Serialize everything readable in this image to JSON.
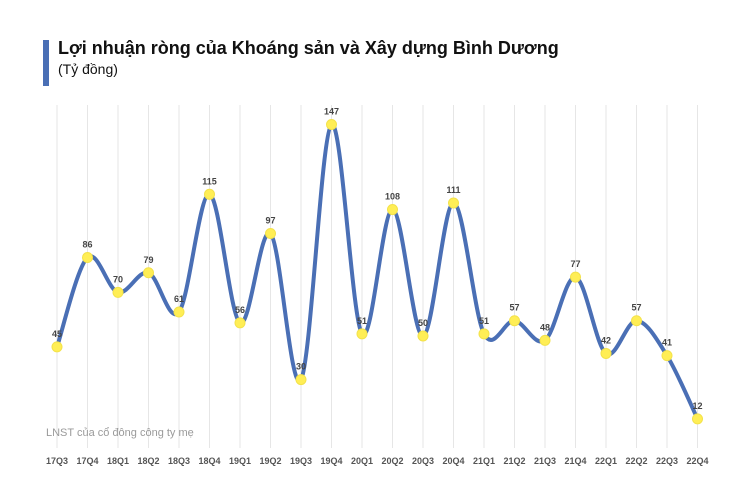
{
  "chart_data": {
    "type": "line",
    "title": "Lợi nhuận ròng của Khoáng sản và Xây dựng Bình Dương",
    "subtitle": "(Tỷ đồng)",
    "note": "LNST của cổ đông công ty mẹ",
    "categories": [
      "17Q3",
      "17Q4",
      "18Q1",
      "18Q2",
      "18Q3",
      "18Q4",
      "19Q1",
      "19Q2",
      "19Q3",
      "19Q4",
      "20Q1",
      "20Q2",
      "20Q3",
      "20Q4",
      "21Q1",
      "21Q2",
      "21Q3",
      "21Q4",
      "22Q1",
      "22Q2",
      "22Q3",
      "22Q4"
    ],
    "series": [
      {
        "values": [
          45,
          86,
          70,
          79,
          61,
          115,
          56,
          97,
          30,
          147,
          51,
          108,
          50,
          111,
          51,
          57,
          48,
          77,
          42,
          57,
          41,
          12
        ]
      }
    ],
    "ylim": [
      0,
      150
    ],
    "grid": "vertical",
    "colors": {
      "line": "#4a6fb5",
      "marker": "#ffee55",
      "grid": "#e6e6e6",
      "title_bar": "#4a6fb5"
    }
  }
}
